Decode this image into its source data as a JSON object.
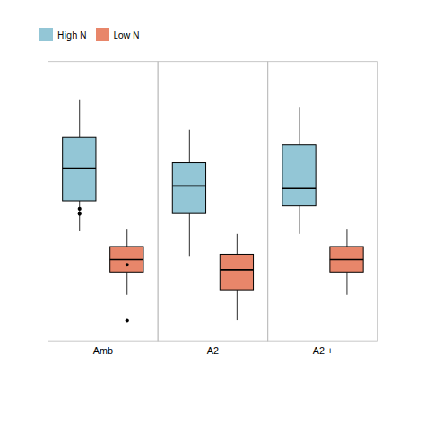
{
  "chart_data": {
    "type": "box",
    "categories": [
      "Amb",
      "A2",
      "A2 +"
    ],
    "series": [
      {
        "name": "High N",
        "color": "#93C6D6",
        "boxes": [
          {
            "q1": 55,
            "median": 68,
            "q3": 80,
            "whislo": 43,
            "whishi": 95,
            "fliers": [
              52,
              50
            ]
          },
          {
            "q1": 50,
            "median": 61,
            "q3": 70,
            "whislo": 33,
            "whishi": 83,
            "fliers": []
          },
          {
            "q1": 53,
            "median": 60,
            "q3": 77,
            "whislo": 42,
            "whishi": 92,
            "fliers": []
          }
        ]
      },
      {
        "name": "Low N",
        "color": "#E8866A",
        "boxes": [
          {
            "q1": 27,
            "median": 32,
            "q3": 37,
            "whislo": 18,
            "whishi": 44,
            "fliers": [
              8,
              30
            ]
          },
          {
            "q1": 20,
            "median": 28,
            "q3": 34,
            "whislo": 8,
            "whishi": 42,
            "fliers": []
          },
          {
            "q1": 27,
            "median": 32,
            "q3": 37,
            "whislo": 18,
            "whishi": 44,
            "fliers": []
          }
        ]
      }
    ],
    "ylim": [
      0,
      110
    ],
    "yticks": [],
    "grid": true,
    "legend": "top",
    "tick_labels": "x"
  }
}
